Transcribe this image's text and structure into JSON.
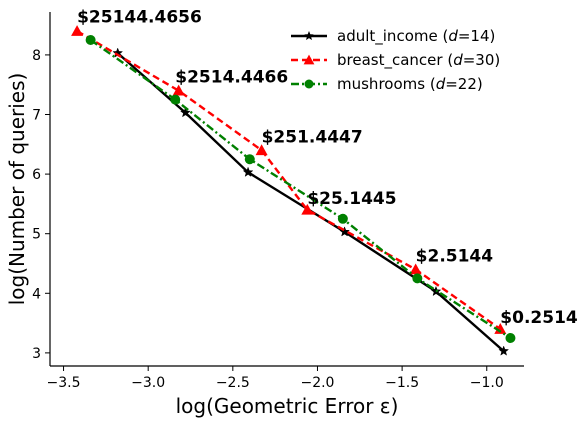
{
  "chart_data": {
    "type": "line",
    "xlabel": "log(Geometric Error ε)",
    "ylabel": "log(Number of queries)",
    "xlim": [
      -3.58,
      -0.78
    ],
    "ylim": [
      2.78,
      8.72
    ],
    "xticks": [
      -3.5,
      -3.0,
      -2.5,
      -2.0,
      -1.5,
      -1.0
    ],
    "xtick_labels": [
      "−3.5",
      "−3.0",
      "−2.5",
      "−2.0",
      "−1.5",
      "−1.0"
    ],
    "yticks": [
      3,
      4,
      5,
      6,
      7,
      8
    ],
    "ytick_labels": [
      "3",
      "4",
      "5",
      "6",
      "7",
      "8"
    ],
    "grid": false,
    "legend_position": "top-right",
    "series": [
      {
        "name": "adult_income (d=14)",
        "legend_prefix": "adult_income (",
        "legend_var": "d",
        "legend_suffix": "=14)",
        "color": "#000000",
        "marker": "star",
        "dash": "solid",
        "x": [
          -3.18,
          -2.78,
          -2.41,
          -1.84,
          -1.3,
          -0.9
        ],
        "y": [
          8.03,
          7.03,
          6.03,
          5.03,
          4.03,
          3.03
        ]
      },
      {
        "name": "breast_cancer (d=30)",
        "legend_prefix": "breast_cancer (",
        "legend_var": "d",
        "legend_suffix": "=30)",
        "color": "#ff0000",
        "marker": "triangle",
        "dash": "dashed",
        "x": [
          -3.42,
          -2.82,
          -2.33,
          -2.06,
          -1.42,
          -0.92
        ],
        "y": [
          8.4,
          7.4,
          6.4,
          5.4,
          4.4,
          3.4
        ]
      },
      {
        "name": "mushrooms (d=22)",
        "legend_prefix": "mushrooms (",
        "legend_var": "d",
        "legend_suffix": "=22)",
        "color": "#008000",
        "marker": "circle",
        "dash": "dashdot",
        "x": [
          -3.34,
          -2.84,
          -2.4,
          -1.85,
          -1.41,
          -0.86
        ],
        "y": [
          8.25,
          7.25,
          6.25,
          5.25,
          4.25,
          3.25
        ]
      }
    ],
    "annotations": [
      {
        "text": "$25144.4656",
        "x": -3.42,
        "y": 8.54
      },
      {
        "text": "$2514.4466",
        "x": -2.84,
        "y": 7.54
      },
      {
        "text": "$251.4447",
        "x": -2.33,
        "y": 6.53
      },
      {
        "text": "$25.1445",
        "x": -2.06,
        "y": 5.5
      },
      {
        "text": "$2.5144",
        "x": -1.42,
        "y": 4.53
      },
      {
        "text": "$0.2514",
        "x": -0.92,
        "y": 3.5
      }
    ]
  }
}
